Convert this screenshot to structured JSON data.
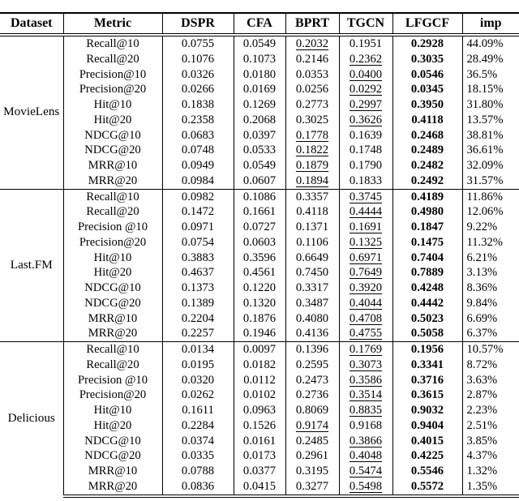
{
  "table": {
    "columns": [
      "Dataset",
      "Metric",
      "DSPR",
      "CFA",
      "BPRT",
      "TGCN",
      "LFGCF",
      "imp"
    ],
    "emphasis": {
      "bold_column": "LFGCF",
      "underline_meaning": "second-best value",
      "bold_meaning": "best value"
    },
    "sections": [
      {
        "dataset": "MovieLens",
        "rows": [
          {
            "metric": "Recall@10",
            "values": [
              "0.0755",
              "0.0549",
              "0.2032",
              "0.1951",
              "0.2928",
              "44.09%"
            ],
            "underline": "BPRT"
          },
          {
            "metric": "Recall@20",
            "values": [
              "0.1076",
              "0.1073",
              "0.2146",
              "0.2362",
              "0.3035",
              "28.49%"
            ],
            "underline": "TGCN"
          },
          {
            "metric": "Precision@10",
            "values": [
              "0.0326",
              "0.0180",
              "0.0353",
              "0.0400",
              "0.0546",
              "36.5%"
            ],
            "underline": "TGCN"
          },
          {
            "metric": "Precision@20",
            "values": [
              "0.0266",
              "0.0169",
              "0.0256",
              "0.0292",
              "0.0345",
              "18.15%"
            ],
            "underline": "TGCN"
          },
          {
            "metric": "Hit@10",
            "values": [
              "0.1838",
              "0.1269",
              "0.2773",
              "0.2997",
              "0.3950",
              "31.80%"
            ],
            "underline": "TGCN"
          },
          {
            "metric": "Hit@20",
            "values": [
              "0.2358",
              "0.2068",
              "0.3025",
              "0.3626",
              "0.4118",
              "13.57%"
            ],
            "underline": "TGCN"
          },
          {
            "metric": "NDCG@10",
            "values": [
              "0.0683",
              "0.0397",
              "0.1778",
              "0.1639",
              "0.2468",
              "38.81%"
            ],
            "underline": "BPRT"
          },
          {
            "metric": "NDCG@20",
            "values": [
              "0.0748",
              "0.0533",
              "0.1822",
              "0.1748",
              "0.2489",
              "36.61%"
            ],
            "underline": "BPRT"
          },
          {
            "metric": "MRR@10",
            "values": [
              "0.0949",
              "0.0549",
              "0.1879",
              "0.1790",
              "0.2482",
              "32.09%"
            ],
            "underline": "BPRT"
          },
          {
            "metric": "MRR@20",
            "values": [
              "0.0984",
              "0.0607",
              "0.1894",
              "0.1833",
              "0.2492",
              "31.57%"
            ],
            "underline": "BPRT"
          }
        ]
      },
      {
        "dataset": "Last.FM",
        "rows": [
          {
            "metric": "Recall@10",
            "values": [
              "0.0982",
              "0.1086",
              "0.3357",
              "0.3745",
              "0.4189",
              "11.86%"
            ],
            "underline": "TGCN"
          },
          {
            "metric": "Recall@20",
            "values": [
              "0.1472",
              "0.1661",
              "0.4118",
              "0.4444",
              "0.4980",
              "12.06%"
            ],
            "underline": "TGCN"
          },
          {
            "metric": "Precision @10",
            "values": [
              "0.0971",
              "0.0727",
              "0.1371",
              "0.1691",
              "0.1847",
              "9.22%"
            ],
            "underline": "TGCN"
          },
          {
            "metric": "Precision@20",
            "values": [
              "0.0754",
              "0.0603",
              "0.1106",
              "0.1325",
              "0.1475",
              "11.32%"
            ],
            "underline": "TGCN"
          },
          {
            "metric": "Hit@10",
            "values": [
              "0.3883",
              "0.3596",
              "0.6649",
              "0.6971",
              "0.7404",
              "6.21%"
            ],
            "underline": "TGCN"
          },
          {
            "metric": "Hit@20",
            "values": [
              "0.4637",
              "0.4561",
              "0.7450",
              "0.7649",
              "0.7889",
              "3.13%"
            ],
            "underline": "TGCN"
          },
          {
            "metric": "NDCG@10",
            "values": [
              "0.1373",
              "0.1220",
              "0.3317",
              "0.3920",
              "0.4248",
              "8.36%"
            ],
            "underline": "TGCN"
          },
          {
            "metric": "NDCG@20",
            "values": [
              "0.1389",
              "0.1320",
              "0.3487",
              "0.4044",
              "0.4442",
              "9.84%"
            ],
            "underline": "TGCN"
          },
          {
            "metric": "MRR@10",
            "values": [
              "0.2204",
              "0.1876",
              "0.4080",
              "0.4708",
              "0.5023",
              "6.69%"
            ],
            "underline": "TGCN"
          },
          {
            "metric": "MRR@20",
            "values": [
              "0.2257",
              "0.1946",
              "0.4136",
              "0.4755",
              "0.5058",
              "6.37%"
            ],
            "underline": "TGCN"
          }
        ]
      },
      {
        "dataset": "Delicious",
        "rows": [
          {
            "metric": "Recall@10",
            "values": [
              "0.0134",
              "0.0097",
              "0.1396",
              "0.1769",
              "0.1956",
              "10.57%"
            ],
            "underline": "TGCN"
          },
          {
            "metric": "Recall@20",
            "values": [
              "0.0195",
              "0.0182",
              "0.2595",
              "0.3073",
              "0.3341",
              "8.72%"
            ],
            "underline": "TGCN"
          },
          {
            "metric": "Precision @10",
            "values": [
              "0.0320",
              "0.0112",
              "0.2473",
              "0.3586",
              "0.3716",
              "3.63%"
            ],
            "underline": "TGCN"
          },
          {
            "metric": "Precision@20",
            "values": [
              "0.0262",
              "0.0102",
              "0.2736",
              "0.3514",
              "0.3615",
              "2.87%"
            ],
            "underline": "TGCN"
          },
          {
            "metric": "Hit@10",
            "values": [
              "0.1611",
              "0.0963",
              "0.8069",
              "0.8835",
              "0.9032",
              "2.23%"
            ],
            "underline": "TGCN"
          },
          {
            "metric": "Hit@20",
            "values": [
              "0.2284",
              "0.1526",
              "0.9174",
              "0.9168",
              "0.9404",
              "2.51%"
            ],
            "underline": "BPRT"
          },
          {
            "metric": "NDCG@10",
            "values": [
              "0.0374",
              "0.0161",
              "0.2485",
              "0.3866",
              "0.4015",
              "3.85%"
            ],
            "underline": "TGCN"
          },
          {
            "metric": "NDCG@20",
            "values": [
              "0.0335",
              "0.0173",
              "0.2961",
              "0.4048",
              "0.4225",
              "4.37%"
            ],
            "underline": "TGCN"
          },
          {
            "metric": "MRR@10",
            "values": [
              "0.0788",
              "0.0377",
              "0.3195",
              "0.5474",
              "0.5546",
              "1.32%"
            ],
            "underline": "TGCN"
          },
          {
            "metric": "MRR@20",
            "values": [
              "0.0836",
              "0.0415",
              "0.3277",
              "0.5498",
              "0.5572",
              "1.35%"
            ],
            "underline": "TGCN"
          }
        ]
      }
    ]
  }
}
